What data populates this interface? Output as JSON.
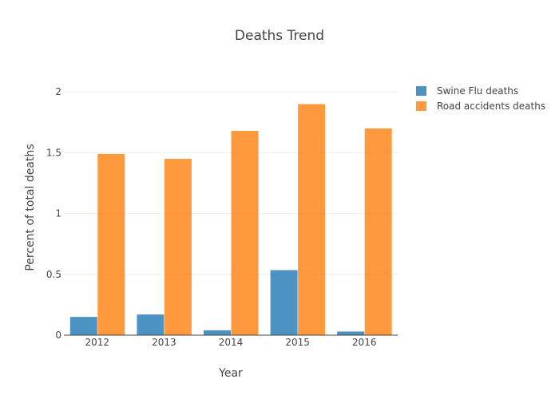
{
  "chart_data": {
    "type": "bar",
    "title": "Deaths Trend",
    "xlabel": "Year",
    "ylabel": "Percent of total deaths",
    "categories": [
      "2012",
      "2013",
      "2014",
      "2015",
      "2016"
    ],
    "series": [
      {
        "name": "Swine Flu deaths",
        "color": "#1f77b4",
        "values": [
          0.15,
          0.17,
          0.04,
          0.535,
          0.03
        ]
      },
      {
        "name": "Road accidents deaths",
        "color": "#ff7f0e",
        "values": [
          1.49,
          1.45,
          1.68,
          1.9,
          1.7
        ]
      }
    ],
    "yticks": [
      "0",
      "0.5",
      "1",
      "1.5",
      "2"
    ],
    "ylim": [
      0,
      2.1
    ],
    "grid": true,
    "legend_position": "top-right"
  }
}
